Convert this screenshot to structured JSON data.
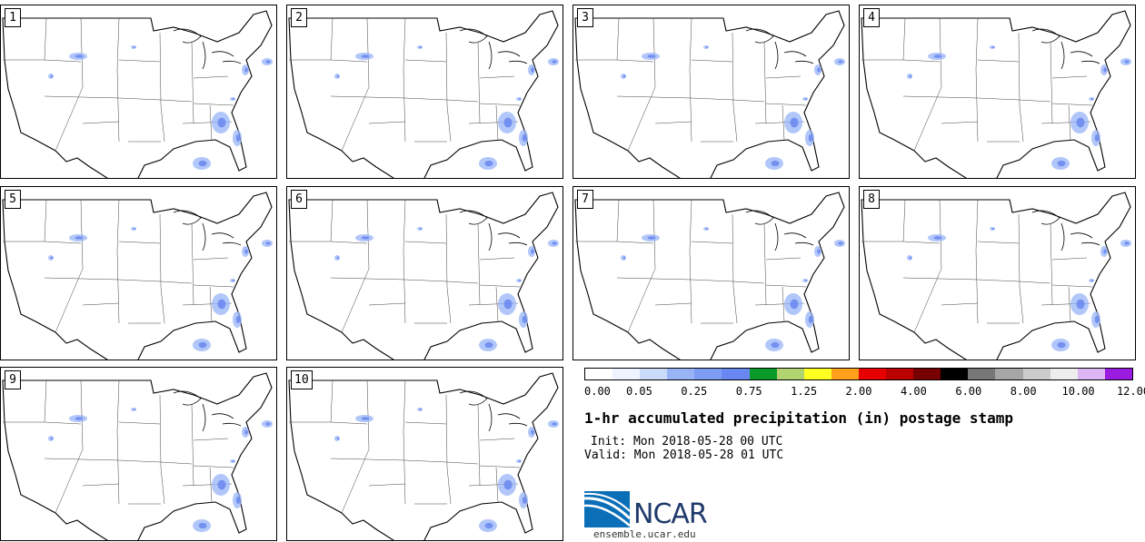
{
  "panels": [
    {
      "label": "1"
    },
    {
      "label": "2"
    },
    {
      "label": "3"
    },
    {
      "label": "4"
    },
    {
      "label": "5"
    },
    {
      "label": "6"
    },
    {
      "label": "7"
    },
    {
      "label": "8"
    },
    {
      "label": "9"
    },
    {
      "label": "10"
    }
  ],
  "legend": {
    "colors": [
      "#ffffff",
      "#eef4ff",
      "#cbdcfb",
      "#98b4f7",
      "#7e9ef4",
      "#6987f0",
      "#0a9a2a",
      "#b2d470",
      "#ffff22",
      "#ffa11a",
      "#e60000",
      "#bb0000",
      "#770000",
      "#000000",
      "#777777",
      "#a6a6a6",
      "#cccccc",
      "#eeeeee",
      "#deb6f6",
      "#9a1ce0"
    ],
    "tick_labels": [
      "0.00",
      "0.05",
      "0.25",
      "0.75",
      "1.25",
      "2.00",
      "4.00",
      "6.00",
      "8.00",
      "10.00",
      "12.00"
    ]
  },
  "title": "1-hr accumulated precipitation (in) postage stamp",
  "init": "Init: Mon 2018-05-28 00 UTC",
  "valid": "Valid: Mon 2018-05-28 01 UTC",
  "logo": {
    "org": "NCAR",
    "site": "ensemble.ucar.edu",
    "colors": [
      "#0b6fb8",
      "#1f3a6b"
    ]
  }
}
